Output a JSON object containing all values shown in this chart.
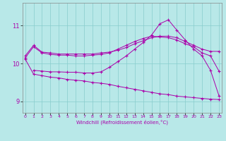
{
  "xlabel": "Windchill (Refroidissement éolien,°C)",
  "background_color": "#b8e8e8",
  "grid_color": "#88cccc",
  "line_color": "#aa00aa",
  "x_ticks": [
    0,
    1,
    2,
    3,
    4,
    5,
    6,
    7,
    8,
    9,
    10,
    11,
    12,
    13,
    14,
    15,
    16,
    17,
    18,
    19,
    20,
    21,
    22,
    23
  ],
  "y_ticks": [
    9,
    10,
    11
  ],
  "ylim": [
    8.7,
    11.6
  ],
  "xlim": [
    -0.3,
    23.3
  ],
  "series": [
    {
      "x": [
        0,
        1,
        2,
        3,
        4,
        5,
        6,
        7,
        8,
        9,
        10,
        11,
        12,
        13,
        14,
        15,
        16,
        17,
        18,
        19,
        20,
        21,
        22,
        23
      ],
      "y": [
        10.2,
        10.48,
        10.3,
        10.28,
        10.25,
        10.25,
        10.25,
        10.25,
        10.25,
        10.28,
        10.3,
        10.35,
        10.42,
        10.52,
        10.6,
        10.68,
        10.72,
        10.72,
        10.68,
        10.58,
        10.48,
        10.38,
        10.32,
        10.32
      ]
    },
    {
      "x": [
        0,
        1,
        2,
        3,
        4,
        5,
        6,
        7,
        8,
        9,
        10,
        11,
        12,
        13,
        14,
        15,
        16,
        17,
        18,
        19,
        20,
        21,
        22,
        23
      ],
      "y": [
        10.15,
        10.44,
        10.28,
        10.24,
        10.22,
        10.22,
        10.2,
        10.2,
        10.22,
        10.24,
        10.28,
        10.38,
        10.48,
        10.58,
        10.66,
        10.72,
        10.7,
        10.68,
        10.62,
        10.52,
        10.44,
        10.28,
        10.2,
        9.8
      ]
    },
    {
      "x": [
        1,
        2,
        3,
        4,
        5,
        6,
        7,
        8,
        9,
        10,
        11,
        12,
        13,
        14,
        15,
        16,
        17,
        18,
        19,
        20,
        21,
        22,
        23
      ],
      "y": [
        9.82,
        9.8,
        9.78,
        9.78,
        9.77,
        9.77,
        9.75,
        9.75,
        9.78,
        9.9,
        10.05,
        10.2,
        10.38,
        10.55,
        10.75,
        11.05,
        11.15,
        10.88,
        10.62,
        10.38,
        10.2,
        9.82,
        9.15
      ]
    },
    {
      "x": [
        0,
        1,
        2,
        3,
        4,
        5,
        6,
        7,
        8,
        9,
        10,
        11,
        12,
        13,
        14,
        15,
        16,
        17,
        18,
        19,
        20,
        21,
        22,
        23
      ],
      "y": [
        10.12,
        9.72,
        9.68,
        9.64,
        9.62,
        9.58,
        9.56,
        9.54,
        9.5,
        9.48,
        9.45,
        9.4,
        9.36,
        9.32,
        9.28,
        9.24,
        9.2,
        9.18,
        9.14,
        9.12,
        9.1,
        9.08,
        9.06,
        9.05
      ]
    }
  ]
}
